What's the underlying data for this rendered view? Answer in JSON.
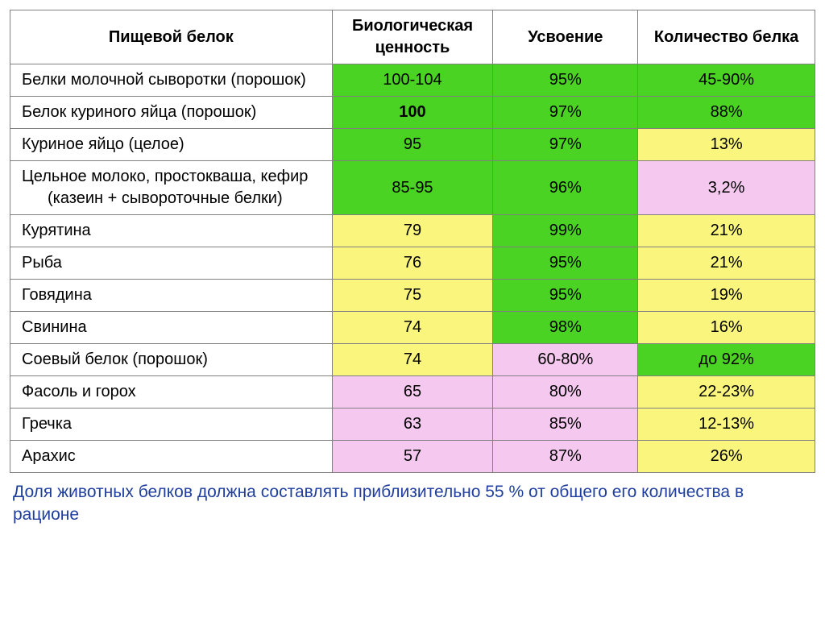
{
  "colors": {
    "green": "#4bd324",
    "yellow": "#faf57c",
    "pink": "#f5c8ef",
    "white": "#ffffff",
    "border": "#808080",
    "footnote_text": "#1f3e9e"
  },
  "columns": [
    {
      "label": "Пищевой белок",
      "width": "40%"
    },
    {
      "label": "Биологическая ценность",
      "width": "20%"
    },
    {
      "label": "Усвоение",
      "width": "18%"
    },
    {
      "label": "Количество белка",
      "width": "22%"
    }
  ],
  "rows": [
    {
      "name": "Белки молочной сыворотки (порошок)",
      "cells": [
        {
          "text": "100-104",
          "bg": "green",
          "bold": false
        },
        {
          "text": "95%",
          "bg": "green",
          "bold": false
        },
        {
          "text": "45-90%",
          "bg": "green",
          "bold": false
        }
      ]
    },
    {
      "name": "Белок куриного яйца (порошок)",
      "cells": [
        {
          "text": "100",
          "bg": "green",
          "bold": true
        },
        {
          "text": "97%",
          "bg": "green",
          "bold": false
        },
        {
          "text": "88%",
          "bg": "green",
          "bold": false
        }
      ]
    },
    {
      "name": "Куриное яйцо (целое)",
      "cells": [
        {
          "text": "95",
          "bg": "green",
          "bold": false
        },
        {
          "text": "97%",
          "bg": "green",
          "bold": false
        },
        {
          "text": "13%",
          "bg": "yellow",
          "bold": false
        }
      ]
    },
    {
      "name": "Цельное молоко, простокваша, кефир (казеин + сывороточные белки)",
      "cells": [
        {
          "text": "85-95",
          "bg": "green",
          "bold": false
        },
        {
          "text": "96%",
          "bg": "green",
          "bold": false
        },
        {
          "text": "3,2%",
          "bg": "pink",
          "bold": false
        }
      ]
    },
    {
      "name": "Курятина",
      "cells": [
        {
          "text": "79",
          "bg": "yellow",
          "bold": false
        },
        {
          "text": "99%",
          "bg": "green",
          "bold": false
        },
        {
          "text": "21%",
          "bg": "yellow",
          "bold": false
        }
      ]
    },
    {
      "name": "Рыба",
      "cells": [
        {
          "text": "76",
          "bg": "yellow",
          "bold": false
        },
        {
          "text": "95%",
          "bg": "green",
          "bold": false
        },
        {
          "text": "21%",
          "bg": "yellow",
          "bold": false
        }
      ]
    },
    {
      "name": "Говядина",
      "cells": [
        {
          "text": "75",
          "bg": "yellow",
          "bold": false
        },
        {
          "text": "95%",
          "bg": "green",
          "bold": false
        },
        {
          "text": "19%",
          "bg": "yellow",
          "bold": false
        }
      ]
    },
    {
      "name": "Свинина",
      "cells": [
        {
          "text": "74",
          "bg": "yellow",
          "bold": false
        },
        {
          "text": "98%",
          "bg": "green",
          "bold": false
        },
        {
          "text": "16%",
          "bg": "yellow",
          "bold": false
        }
      ]
    },
    {
      "name": "Соевый белок (порошок)",
      "cells": [
        {
          "text": "74",
          "bg": "yellow",
          "bold": false
        },
        {
          "text": "60-80%",
          "bg": "pink",
          "bold": false
        },
        {
          "text": "до 92%",
          "bg": "green",
          "bold": false
        }
      ]
    },
    {
      "name": "Фасоль и горох",
      "cells": [
        {
          "text": "65",
          "bg": "pink",
          "bold": false
        },
        {
          "text": "80%",
          "bg": "pink",
          "bold": false
        },
        {
          "text": "22-23%",
          "bg": "yellow",
          "bold": false
        }
      ]
    },
    {
      "name": "Гречка",
      "cells": [
        {
          "text": "63",
          "bg": "pink",
          "bold": false
        },
        {
          "text": "85%",
          "bg": "pink",
          "bold": false
        },
        {
          "text": "12-13%",
          "bg": "yellow",
          "bold": false
        }
      ]
    },
    {
      "name": "Арахис",
      "cells": [
        {
          "text": "57",
          "bg": "pink",
          "bold": false
        },
        {
          "text": "87%",
          "bg": "pink",
          "bold": false
        },
        {
          "text": "26%",
          "bg": "yellow",
          "bold": false
        }
      ]
    }
  ],
  "footnote": "Доля животных белков должна составлять приблизительно 55 % от общего его количества в рационе"
}
